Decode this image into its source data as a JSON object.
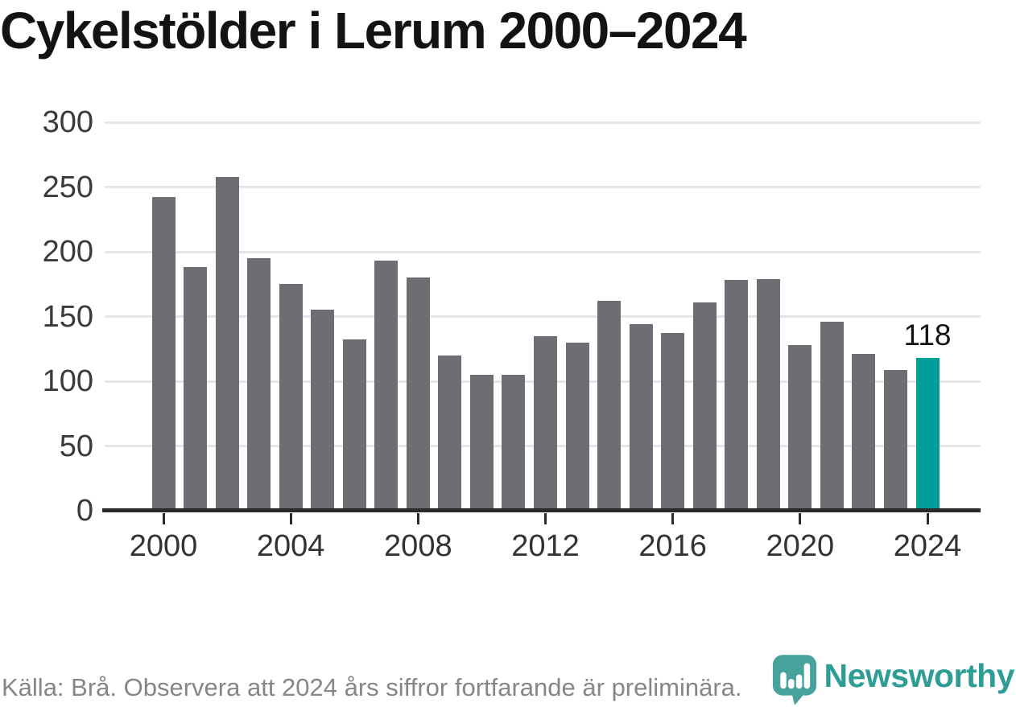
{
  "chart_data": {
    "type": "bar",
    "title": "Cykelstölder i Lerum 2000–2024",
    "categories": [
      "2000",
      "2001",
      "2002",
      "2003",
      "2004",
      "2005",
      "2006",
      "2007",
      "2008",
      "2009",
      "2010",
      "2011",
      "2012",
      "2013",
      "2014",
      "2015",
      "2016",
      "2017",
      "2018",
      "2019",
      "2020",
      "2021",
      "2022",
      "2023",
      "2024"
    ],
    "values": [
      242,
      188,
      258,
      195,
      175,
      155,
      132,
      193,
      180,
      120,
      105,
      105,
      135,
      130,
      162,
      144,
      137,
      161,
      178,
      179,
      128,
      146,
      121,
      109,
      118
    ],
    "highlighted_category": "2024",
    "annotation": {
      "category": "2024",
      "text": "118"
    },
    "xlabel": "",
    "ylabel": "",
    "ylim": [
      0,
      300
    ],
    "yticks": [
      0,
      50,
      100,
      150,
      200,
      250,
      300
    ],
    "xtick_labels": [
      "2000",
      "2004",
      "2008",
      "2012",
      "2016",
      "2020",
      "2024"
    ],
    "grid": true,
    "legend": false,
    "bar_color": "#6d6d73",
    "highlight_color": "#009e99",
    "gridline_color": "#e6e6e6",
    "axis_color": "#2a2a2a"
  },
  "footer": {
    "source_text": "Källa: Brå. Observera att 2024 års siffror fortfarande är preliminära."
  },
  "branding": {
    "wordmark": "Newsworthy",
    "logo_icon": "newsworthy-bubble-bar-chart-icon",
    "brand_color": "#2e9d96",
    "logo_bubble_color": "#46a29b"
  }
}
